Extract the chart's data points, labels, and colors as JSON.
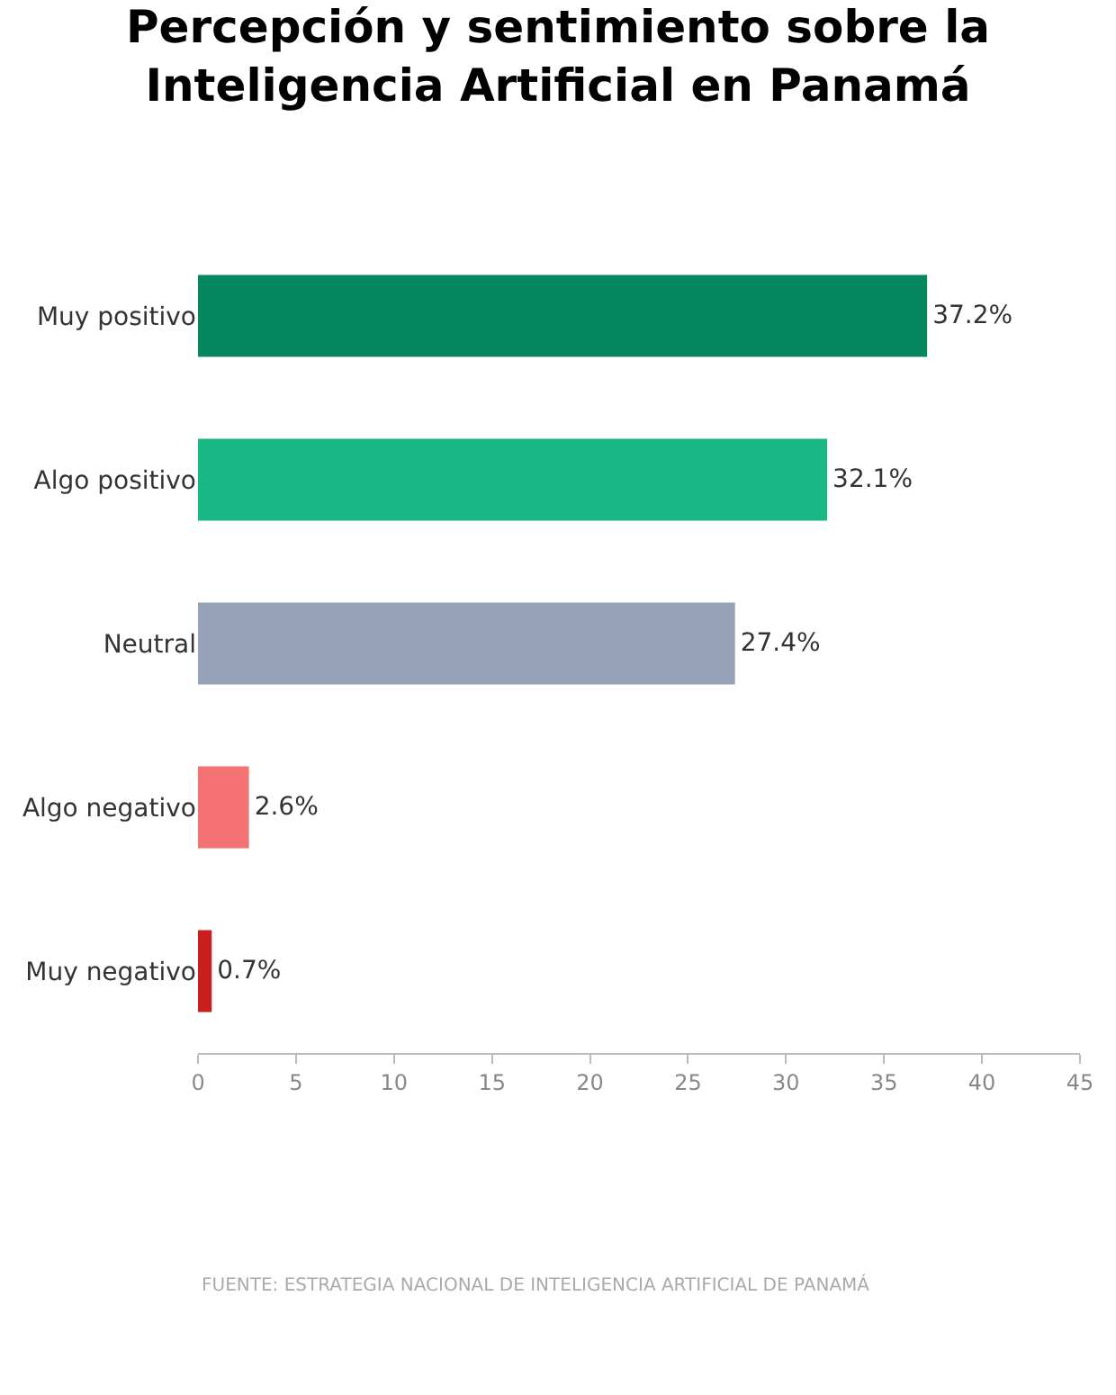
{
  "chart_data": {
    "type": "bar",
    "orientation": "horizontal",
    "title": "Percepción y sentimiento sobre la\nInteligencia Artificial en Panamá",
    "categories": [
      "Muy positivo",
      "Algo positivo",
      "Neutral",
      "Algo negativo",
      "Muy negativo"
    ],
    "values": [
      37.2,
      32.1,
      27.4,
      2.6,
      0.7
    ],
    "value_labels": [
      "37.2%",
      "32.1%",
      "27.4%",
      "2.6%",
      "0.7%"
    ],
    "colors": [
      "#07875f",
      "#19b784",
      "#96a3b8",
      "#f47174",
      "#c81e1e"
    ],
    "xlim": [
      0,
      45
    ],
    "xticks": [
      0,
      5,
      10,
      15,
      20,
      25,
      30,
      35,
      40,
      45
    ],
    "legend": false,
    "annotations": [
      "FUENTE: ESTRATEGIA NACIONAL DE INTELIGENCIA ARTIFICIAL DE PANAMÁ"
    ]
  }
}
